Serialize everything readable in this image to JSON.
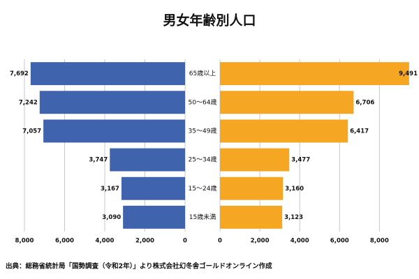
{
  "chart_data": {
    "type": "pyramid",
    "title": "男女年齢別人口",
    "categories": [
      "65歳以上",
      "50〜64歳",
      "35〜49歳",
      "25〜34歳",
      "15〜24歳",
      "15歳未満"
    ],
    "series": [
      {
        "color": "#4063ad",
        "values": [
          7692,
          7242,
          7057,
          3747,
          3167,
          3090
        ],
        "value_labels": [
          "7,692",
          "7,242",
          "7,057",
          "3,747",
          "3,167",
          "3,090"
        ],
        "xlim": [
          0,
          8000
        ],
        "xticks": [
          {
            "value": 8000,
            "label": "8,000"
          },
          {
            "value": 6000,
            "label": "6,000"
          },
          {
            "value": 4000,
            "label": "4,000"
          },
          {
            "value": 2000,
            "label": "2,000"
          },
          0
        ]
      },
      {
        "color": "#f5a623",
        "values": [
          9491,
          6706,
          6417,
          3477,
          3160,
          3123
        ],
        "value_labels": [
          "9,491",
          "6,706",
          "6,417",
          "3,477",
          "3,160",
          "3,123"
        ],
        "xlim": [
          0,
          9600
        ],
        "xticks": [
          0,
          {
            "value": 2000,
            "label": "2,000"
          },
          {
            "value": 4000,
            "label": "4,000"
          },
          {
            "value": 6000,
            "label": "6,000"
          },
          {
            "value": 8000,
            "label": "8,000"
          }
        ]
      }
    ],
    "grid": true,
    "source": "出典：総務省統計局「国勢調査（令和2年）」より株式会社幻冬舎ゴールドオンライン作成"
  }
}
